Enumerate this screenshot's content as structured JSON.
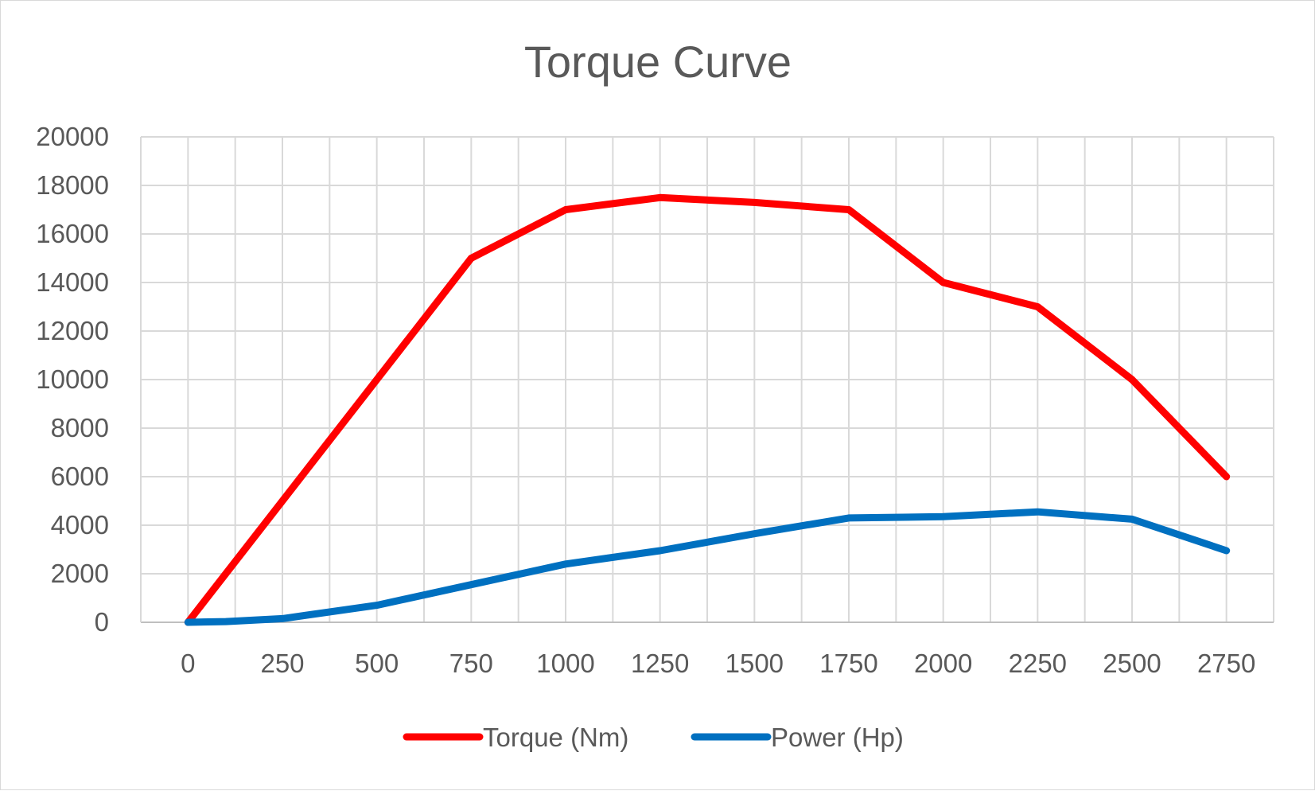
{
  "chart_data": {
    "type": "line",
    "title": "Torque Curve",
    "xlabel": "",
    "ylabel": "",
    "x": [
      0,
      100,
      250,
      500,
      750,
      1000,
      1250,
      1500,
      1750,
      2000,
      2250,
      2500,
      2750
    ],
    "x_tick_labels": [
      "0",
      "250",
      "500",
      "750",
      "1000",
      "1250",
      "1500",
      "1750",
      "2000",
      "2250",
      "2500",
      "2750"
    ],
    "y_tick_labels": [
      "0",
      "2000",
      "4000",
      "6000",
      "8000",
      "10000",
      "12000",
      "14000",
      "16000",
      "18000",
      "20000"
    ],
    "xlim": [
      -125,
      2875
    ],
    "ylim": [
      0,
      20000
    ],
    "grid": true,
    "legend_position": "bottom",
    "series": [
      {
        "name": "Torque (Nm)",
        "color": "#ff0000",
        "x": [
          0,
          250,
          500,
          750,
          1000,
          1250,
          1500,
          1750,
          2000,
          2250,
          2500,
          2750
        ],
        "values": [
          0,
          5000,
          10000,
          15000,
          17000,
          17500,
          17300,
          17000,
          14000,
          13000,
          10000,
          6000
        ]
      },
      {
        "name": "Power (Hp)",
        "color": "#0070c0",
        "x": [
          0,
          100,
          250,
          500,
          750,
          1000,
          1250,
          1500,
          1750,
          2000,
          2250,
          2500,
          2750
        ],
        "values": [
          0,
          30,
          150,
          700,
          1550,
          2400,
          2950,
          3650,
          4300,
          4350,
          4550,
          4250,
          2950
        ]
      }
    ]
  }
}
